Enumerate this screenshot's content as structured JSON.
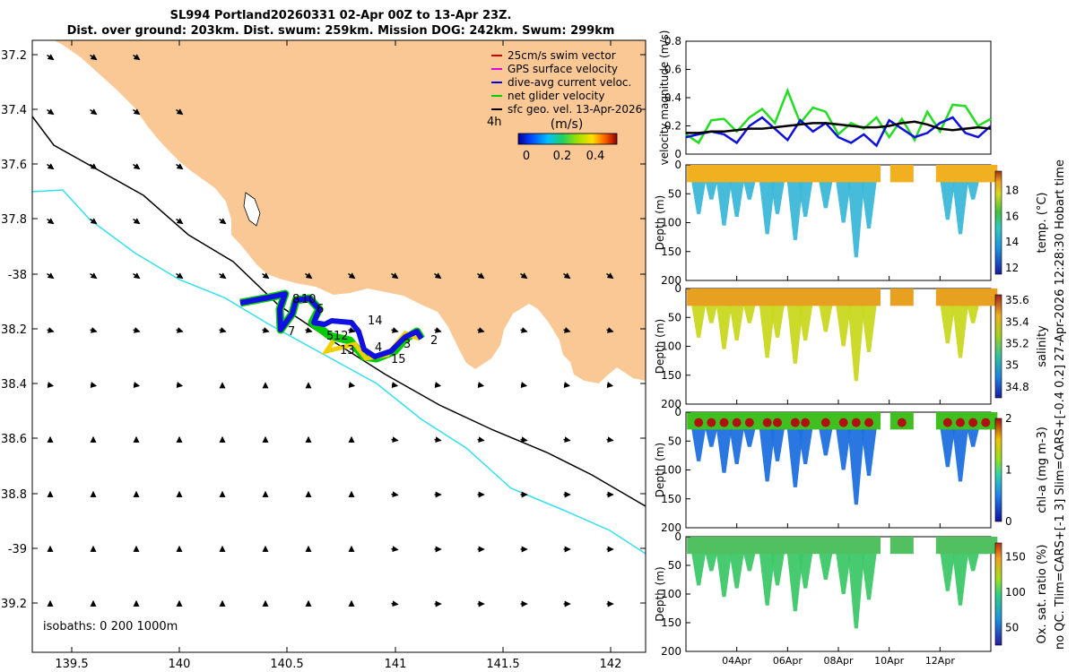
{
  "header": {
    "line1": "SL994 Portland20260331 02-Apr 00Z to 13-Apr 23Z.",
    "line2": "Dist. over ground: 203km. Dist. swum: 259km. Mission DOG: 242km. Swum: 299km"
  },
  "map": {
    "lon_ticks": [
      "139.5",
      "140",
      "140.5",
      "141",
      "141.5",
      "142"
    ],
    "lat_ticks": [
      "37.2",
      "37.4",
      "37.6",
      "37.8",
      "-38",
      "38.2",
      "38.4",
      "38.6",
      "38.8",
      "-39",
      "39.2"
    ],
    "isobath_note": "isobaths: 0   200  1000m",
    "colorbar_label": "(m/s)",
    "colorbar_ticks": [
      "0",
      "0.2",
      "0.4"
    ],
    "interval_label": "4h",
    "legend": [
      {
        "label": "25cm/s swim vector",
        "color": "#d00000"
      },
      {
        "label": "GPS surface velocity",
        "color": "#e000e0"
      },
      {
        "label": "dive-avg current veloc.",
        "color": "#0000e0"
      },
      {
        "label": "net glider velocity",
        "color": "#00d000"
      },
      {
        "label": "sfc geo. vel. 13-Apr-2026",
        "color": "#000000"
      }
    ],
    "waypoints": [
      "2",
      "3",
      "4",
      "5",
      "6",
      "7",
      "8",
      "10",
      "12",
      "13",
      "14",
      "15"
    ],
    "colors": {
      "land": "#f9c895",
      "isobath200": "#000000",
      "isobath1000": "#33e0f0",
      "track": "#1010e0",
      "track_edge": "#00cc00"
    }
  },
  "chart_data": [
    {
      "type": "line",
      "ylabel": "velocity magnitude (m/s)",
      "ylim": [
        0,
        0.8
      ],
      "yticks": [
        "0",
        "0.2",
        "0.4",
        "0.6",
        "0.8"
      ],
      "x": [
        0,
        0.5,
        1,
        1.5,
        2,
        2.5,
        3,
        3.5,
        4,
        4.5,
        5,
        5.5,
        6,
        6.5,
        7,
        7.5,
        8,
        8.5,
        9,
        9.5,
        10,
        10.5,
        11,
        11.5,
        12
      ],
      "series": [
        {
          "name": "net glider velocity",
          "color": "#22dd22",
          "values": [
            0.14,
            0.08,
            0.24,
            0.25,
            0.16,
            0.26,
            0.32,
            0.22,
            0.45,
            0.22,
            0.33,
            0.3,
            0.14,
            0.22,
            0.18,
            0.26,
            0.12,
            0.25,
            0.1,
            0.3,
            0.16,
            0.35,
            0.34,
            0.2,
            0.25
          ]
        },
        {
          "name": "dive-avg current veloc.",
          "color": "#1010dd",
          "values": [
            0.12,
            0.14,
            0.16,
            0.14,
            0.08,
            0.2,
            0.26,
            0.18,
            0.1,
            0.24,
            0.16,
            0.22,
            0.12,
            0.08,
            0.14,
            0.06,
            0.24,
            0.18,
            0.12,
            0.15,
            0.22,
            0.26,
            0.15,
            0.12,
            0.2
          ]
        },
        {
          "name": "sfc geo. vel.",
          "color": "#000000",
          "values": [
            0.15,
            0.15,
            0.16,
            0.16,
            0.17,
            0.18,
            0.18,
            0.19,
            0.2,
            0.21,
            0.22,
            0.22,
            0.21,
            0.2,
            0.19,
            0.19,
            0.2,
            0.22,
            0.23,
            0.21,
            0.18,
            0.17,
            0.18,
            0.19,
            0.18
          ]
        }
      ]
    },
    {
      "type": "heatmap",
      "variable": "temp. (°C)",
      "ylabel": "Depth (m)",
      "ylim": [
        0,
        200
      ],
      "yticks": [
        "0",
        "50",
        "100",
        "150",
        "200"
      ],
      "clim": [
        11.5,
        19.5
      ],
      "cticks": [
        "12",
        "14",
        "16",
        "18"
      ],
      "surface_value": 18.5,
      "deep_value": 13.0
    },
    {
      "type": "heatmap",
      "variable": "salinity",
      "ylabel": "Depth (m)",
      "ylim": [
        0,
        200
      ],
      "yticks": [
        "0",
        "50",
        "100",
        "150",
        "200"
      ],
      "clim": [
        34.7,
        35.65
      ],
      "cticks": [
        "34.8",
        "35",
        "35.2",
        "35.4",
        "35.6"
      ],
      "surface_value": 35.45,
      "deep_value": 35.2
    },
    {
      "type": "heatmap",
      "variable": "chl-a (mg m-3)",
      "ylabel": "Depth (m)",
      "ylim": [
        0,
        200
      ],
      "yticks": [
        "0",
        "50",
        "100",
        "150",
        "200"
      ],
      "clim": [
        0,
        2
      ],
      "cticks": [
        "0",
        "1",
        "2"
      ],
      "surface_value": 1.9,
      "deep_value": 0.4
    },
    {
      "type": "heatmap",
      "variable": "Ox. sat. ratio (%)",
      "ylabel": "Depth (m)",
      "ylim": [
        0,
        200
      ],
      "yticks": [
        "0",
        "50",
        "100",
        "150",
        "200"
      ],
      "clim": [
        25,
        170
      ],
      "cticks": [
        "50",
        "100",
        "150"
      ],
      "surface_value": 105,
      "deep_value": 95
    }
  ],
  "time_axis": {
    "ticks": [
      "04Apr",
      "06Apr",
      "08Apr",
      "10Apr",
      "12Apr"
    ],
    "tick_days": [
      2,
      4,
      6,
      8,
      10
    ],
    "range_days": [
      0,
      12
    ]
  },
  "dives": [
    {
      "t": 0.5,
      "depth": 85
    },
    {
      "t": 1.0,
      "depth": 60
    },
    {
      "t": 1.5,
      "depth": 105
    },
    {
      "t": 2.0,
      "depth": 90
    },
    {
      "t": 2.5,
      "depth": 60
    },
    {
      "t": 3.2,
      "depth": 120
    },
    {
      "t": 3.6,
      "depth": 85
    },
    {
      "t": 4.3,
      "depth": 130
    },
    {
      "t": 4.7,
      "depth": 90
    },
    {
      "t": 5.5,
      "depth": 75
    },
    {
      "t": 6.2,
      "depth": 100
    },
    {
      "t": 6.7,
      "depth": 160
    },
    {
      "t": 7.2,
      "depth": 110
    },
    {
      "t": 8.5,
      "depth": 20
    },
    {
      "t": 10.3,
      "depth": 95
    },
    {
      "t": 10.8,
      "depth": 120
    },
    {
      "t": 11.3,
      "depth": 60
    },
    {
      "t": 11.8,
      "depth": 30
    }
  ],
  "side_note": "no QC. Tlim=CARS+[-1 3] Slim=CARS+[-0.4 0.2] 27-Apr-2026 12:28:30 Hobart time"
}
